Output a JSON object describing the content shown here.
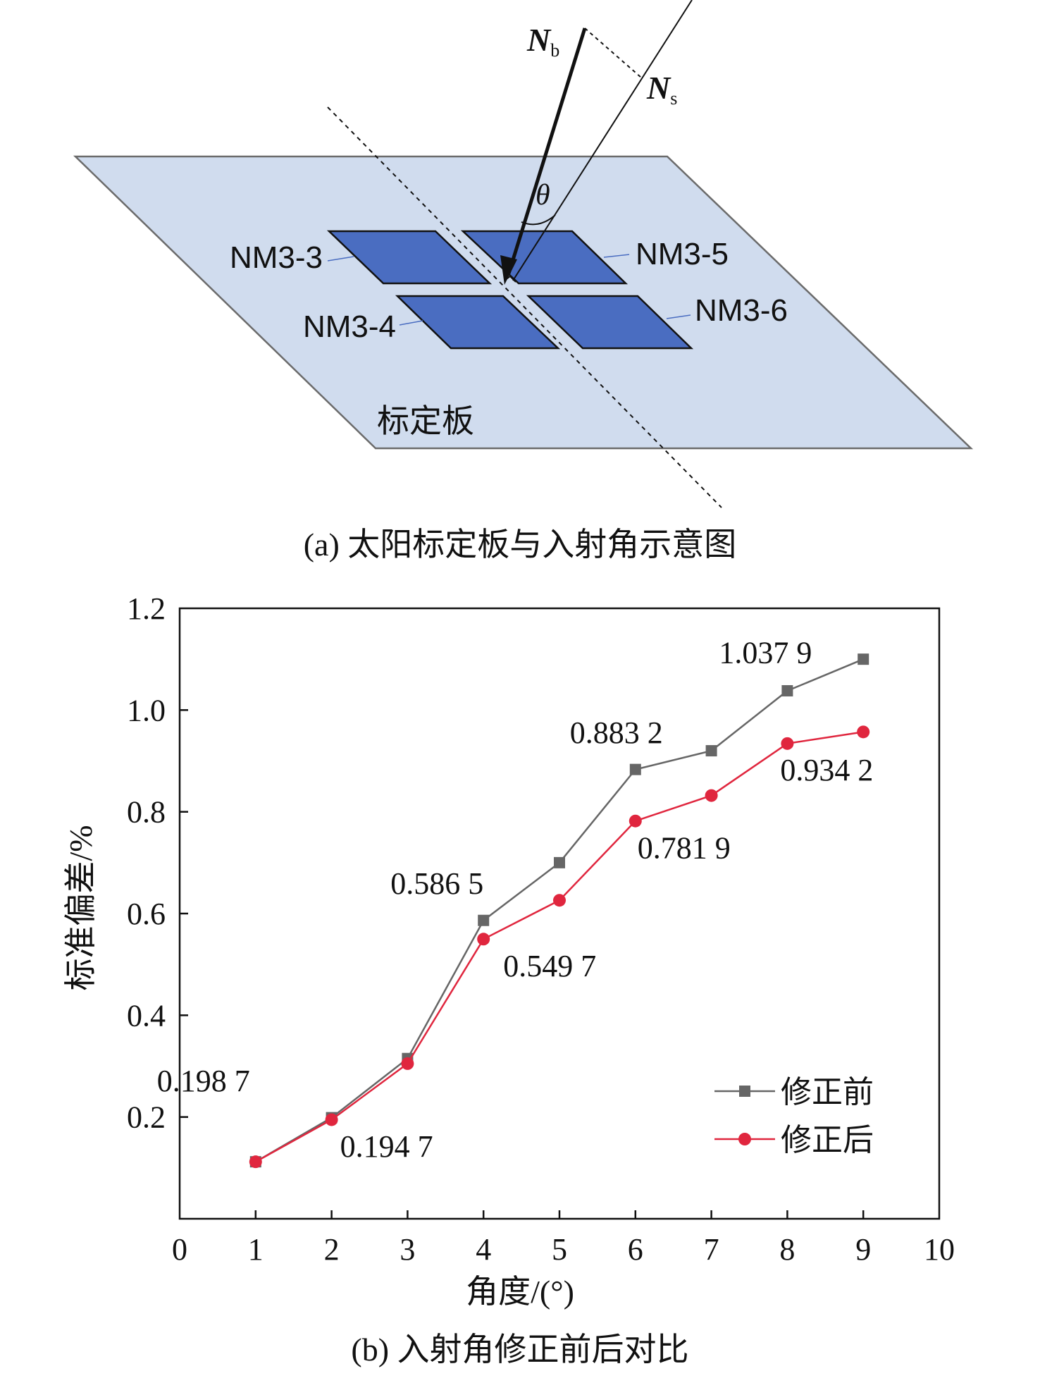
{
  "diagram": {
    "vector_normal_board": "N",
    "vector_normal_board_sub": "b",
    "vector_sun": "N",
    "vector_sun_sub": "s",
    "angle_symbol": "θ",
    "panels": [
      "NM3-3",
      "NM3-5",
      "NM3-4",
      "NM3-6"
    ],
    "board_label": "标定板",
    "caption": "(a) 太阳标定板与入射角示意图",
    "colors": {
      "board": "#d0dcee",
      "panel": "#4a6dc1"
    }
  },
  "chart_data": {
    "type": "line",
    "caption": "(b) 入射角修正前后对比",
    "xlabel": "角度/(°)",
    "ylabel": "标准偏差/%",
    "xlim": [
      0,
      10
    ],
    "ylim": [
      0,
      1.2
    ],
    "xticks": [
      "0",
      "1",
      "2",
      "3",
      "4",
      "5",
      "6",
      "7",
      "8",
      "9",
      "10"
    ],
    "yticks": [
      "0.2",
      "0.4",
      "0.6",
      "0.8",
      "1.0",
      "1.2"
    ],
    "x": [
      1,
      2,
      3,
      4,
      5,
      6,
      7,
      8,
      9
    ],
    "series": [
      {
        "name": "修正前",
        "color": "#666666",
        "marker": "square",
        "values": [
          0.112,
          0.1987,
          0.315,
          0.5865,
          0.7,
          0.8832,
          0.92,
          1.0379,
          1.1
        ]
      },
      {
        "name": "修正后",
        "color": "#e0263e",
        "marker": "circle",
        "values": [
          0.112,
          0.1947,
          0.305,
          0.5497,
          0.626,
          0.7819,
          0.832,
          0.9342,
          0.957
        ]
      }
    ],
    "annotations": [
      {
        "text": "0.198 7",
        "x": 1.4,
        "y": 0.198
      },
      {
        "text": "0.194 7",
        "x": 2.2,
        "y": 0.194
      },
      {
        "text": "0.586 5",
        "x": 3.5,
        "y": 0.586
      },
      {
        "text": "0.549 7",
        "x": 4.5,
        "y": 0.549
      },
      {
        "text": "0.883 2",
        "x": 5.5,
        "y": 0.883
      },
      {
        "text": "0.781 9",
        "x": 6.4,
        "y": 0.781
      },
      {
        "text": "1.037 9",
        "x": 8.0,
        "y": 1.037
      },
      {
        "text": "0.934 2",
        "x": 8.6,
        "y": 0.934
      }
    ],
    "legend_position": "bottom-right",
    "grid": false
  }
}
